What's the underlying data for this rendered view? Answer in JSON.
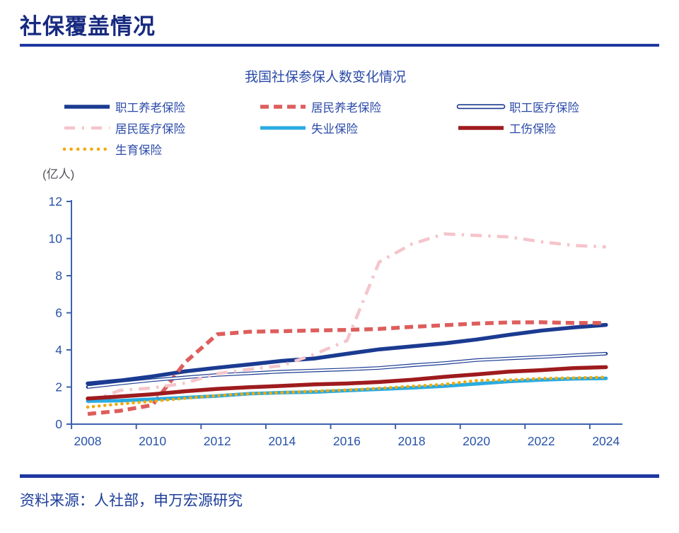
{
  "header": {
    "title": "社保覆盖情况"
  },
  "chart": {
    "title": "我国社保参保人数变化情况",
    "y_unit": "(亿人)"
  },
  "footer": {
    "source": "资料来源：人社部，申万宏源研究"
  },
  "colors": {
    "header_navy": "#172A80",
    "rule_blue": "#1E38A0",
    "label_blue": "#2B4AA8",
    "axis_blue": "#3C61AE",
    "tick_label_blue": "#2953A8",
    "unit_gray": "#55565E"
  },
  "chart_data": {
    "type": "line",
    "title": "我国社保参保人数变化情况",
    "xlabel": "",
    "ylabel": "(亿人)",
    "ylim": [
      0,
      12
    ],
    "ytick_step": 2,
    "grid": false,
    "legend_position": "top",
    "x": [
      2008,
      2009,
      2010,
      2011,
      2012,
      2013,
      2014,
      2015,
      2016,
      2017,
      2018,
      2019,
      2020,
      2021,
      2022,
      2023,
      2024
    ],
    "xtick_labels": [
      "2008",
      "2010",
      "2012",
      "2014",
      "2016",
      "2018",
      "2020",
      "2022",
      "2024"
    ],
    "series": [
      {
        "name": "职工养老保险",
        "color": "#1B3B91",
        "style": "solid",
        "width": 5.5,
        "values": [
          2.19,
          2.35,
          2.57,
          2.84,
          3.04,
          3.22,
          3.41,
          3.54,
          3.79,
          4.03,
          4.19,
          4.35,
          4.56,
          4.81,
          5.04,
          5.21,
          5.35
        ]
      },
      {
        "name": "居民养老保险",
        "color": "#DD5E5C",
        "style": "dashed",
        "width": 5.5,
        "values": [
          0.55,
          0.72,
          1.03,
          3.32,
          4.84,
          4.98,
          5.01,
          5.05,
          5.08,
          5.13,
          5.24,
          5.33,
          5.42,
          5.48,
          5.49,
          5.45,
          5.45
        ]
      },
      {
        "name": "职工医疗保险",
        "color": "#1B3B91",
        "style": "outline",
        "width": 4.8,
        "values": [
          2.0,
          2.19,
          2.37,
          2.52,
          2.65,
          2.74,
          2.83,
          2.89,
          2.95,
          3.03,
          3.17,
          3.29,
          3.45,
          3.54,
          3.62,
          3.71,
          3.8
        ]
      },
      {
        "name": "居民医疗保险",
        "color": "#F5C4CB",
        "style": "dashdot",
        "width": 4.5,
        "values": [
          1.18,
          1.82,
          1.95,
          2.21,
          2.72,
          2.96,
          3.15,
          3.77,
          4.49,
          8.74,
          9.7,
          10.25,
          10.17,
          10.09,
          9.83,
          9.63,
          9.55
        ]
      },
      {
        "name": "失业保险",
        "color": "#29ABE2",
        "style": "solid",
        "width": 5,
        "values": [
          1.24,
          1.27,
          1.34,
          1.43,
          1.52,
          1.64,
          1.7,
          1.73,
          1.81,
          1.88,
          1.96,
          2.05,
          2.17,
          2.3,
          2.38,
          2.44,
          2.47
        ]
      },
      {
        "name": "工伤保险",
        "color": "#9E1B1E",
        "style": "solid",
        "width": 5.5,
        "values": [
          1.38,
          1.49,
          1.61,
          1.77,
          1.9,
          1.99,
          2.06,
          2.14,
          2.19,
          2.27,
          2.39,
          2.55,
          2.68,
          2.83,
          2.91,
          3.02,
          3.07
        ]
      },
      {
        "name": "生育保险",
        "color": "#F2A900",
        "style": "dotted",
        "width": 4.5,
        "values": [
          0.92,
          1.09,
          1.23,
          1.39,
          1.54,
          1.64,
          1.7,
          1.78,
          1.84,
          1.93,
          2.04,
          2.14,
          2.35,
          2.38,
          2.46,
          2.49,
          2.53
        ]
      }
    ]
  }
}
